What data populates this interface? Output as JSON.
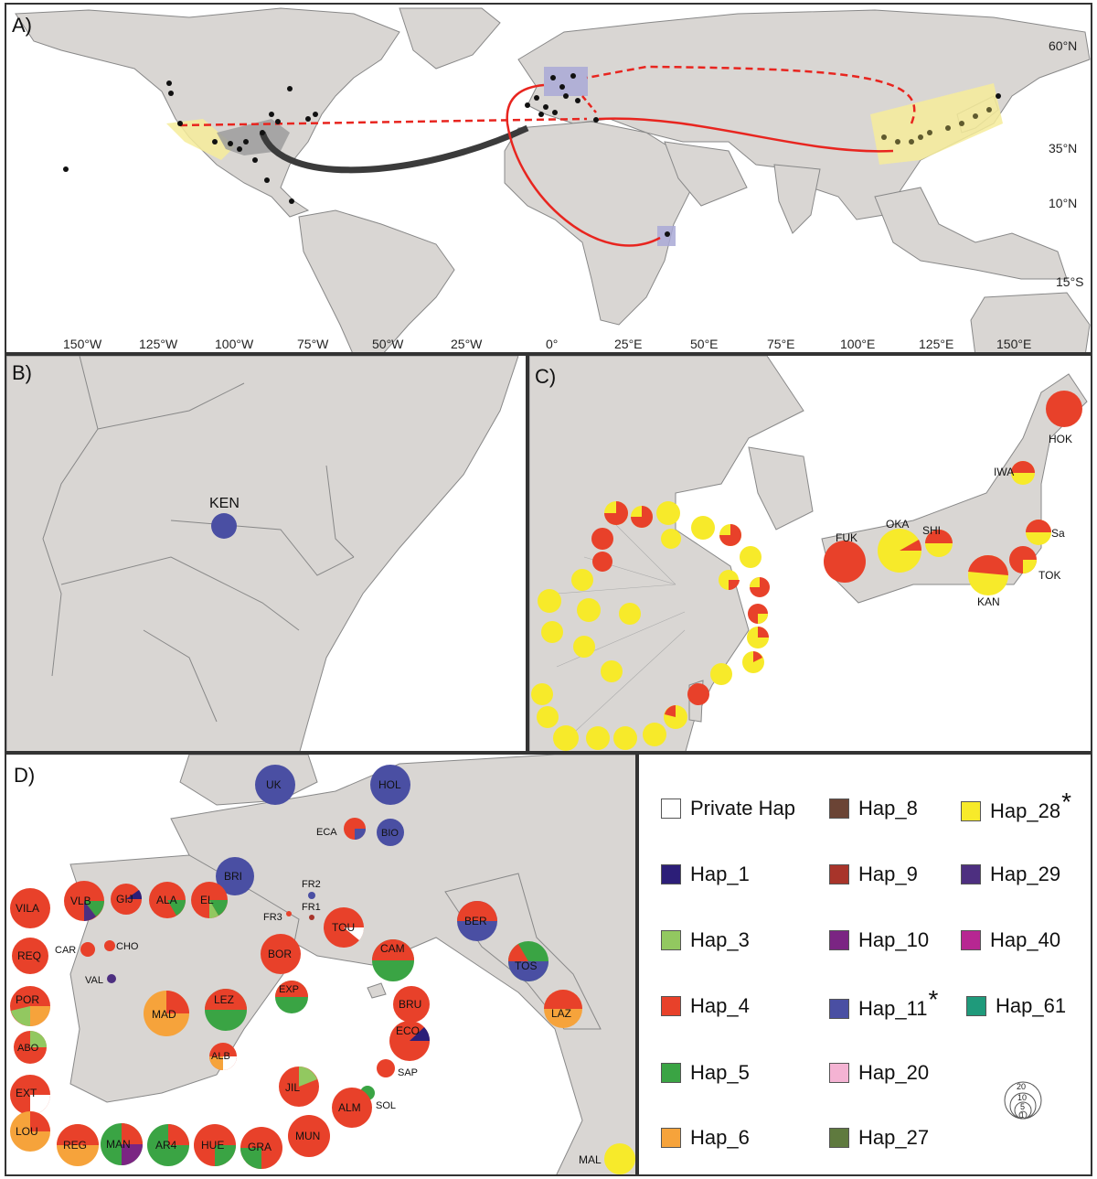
{
  "panels": {
    "a": "A)",
    "b": "B)",
    "c": "C)",
    "d": "D)"
  },
  "colors": {
    "land": "#d9d6d3",
    "ocean": "#ffffff",
    "border": "#777777",
    "yellow_zone": "#f6ec9a",
    "blue_zone": "#a9a9d6",
    "arrow_red": "#e8251f",
    "arrow_dark": "#3b3b3b"
  },
  "lon_ticks": [
    "150°W",
    "125°W",
    "100°W",
    "75°W",
    "50°W",
    "25°W",
    "0°",
    "25°E",
    "50°E",
    "75°E",
    "100°E",
    "125°E",
    "150°E"
  ],
  "lat_ticks": [
    "60°N",
    "35°N",
    "10°N",
    "15°S"
  ],
  "panel_b": {
    "site": "KEN",
    "color": "#4a4fa3"
  },
  "panel_c_sites": [
    "HOK",
    "IWA",
    "OKA",
    "SHI",
    "Sa",
    "FUK",
    "KAN",
    "TOK"
  ],
  "panel_d_sites": [
    "UK",
    "HOL",
    "ECA",
    "BIO",
    "BRI",
    "FR2",
    "FR3",
    "FR1",
    "VILA",
    "VLB",
    "GIJ",
    "ALA",
    "EL",
    "CAR",
    "CHO",
    "TOU",
    "BER",
    "REQ",
    "BOR",
    "CAM",
    "TOS",
    "VAL",
    "EXP",
    "POR",
    "MAD",
    "LEZ",
    "BRU",
    "LAZ",
    "ABO",
    "ALB",
    "ECO",
    "SAP",
    "EXT",
    "JIL",
    "SOL",
    "ALM",
    "LOU",
    "REG",
    "MAN",
    "AR4",
    "HUE",
    "GRA",
    "MUN",
    "MAL"
  ],
  "legend": [
    {
      "label": "Private Hap",
      "color": "#ffffff",
      "star": ""
    },
    {
      "label": "Hap_8",
      "color": "#6b4435",
      "star": ""
    },
    {
      "label": "Hap_28",
      "color": "#f7ea2a",
      "star": "*"
    },
    {
      "label": "Hap_1",
      "color": "#2c1e78",
      "star": ""
    },
    {
      "label": "Hap_9",
      "color": "#a8342a",
      "star": ""
    },
    {
      "label": "Hap_29",
      "color": "#4d2f80",
      "star": ""
    },
    {
      "label": "Hap_3",
      "color": "#92c860",
      "star": ""
    },
    {
      "label": "Hap_10",
      "color": "#7b2583",
      "star": ""
    },
    {
      "label": "Hap_40",
      "color": "#b72792",
      "star": ""
    },
    {
      "label": "Hap_4",
      "color": "#e8412a",
      "star": ""
    },
    {
      "label": "Hap_11",
      "color": "#4a4fa3",
      "star": "*"
    },
    {
      "label": "Hap_61",
      "color": "#1f9a7b",
      "star": ""
    },
    {
      "label": "Hap_5",
      "color": "#3aa444",
      "star": ""
    },
    {
      "label": "Hap_20",
      "color": "#f4b3d3",
      "star": ""
    },
    {
      "label": "Hap_6",
      "color": "#f6a33b",
      "star": ""
    },
    {
      "label": "Hap_27",
      "color": "#5f7a3e",
      "star": ""
    }
  ],
  "scale_values": [
    "20",
    "10",
    "5",
    "1"
  ]
}
